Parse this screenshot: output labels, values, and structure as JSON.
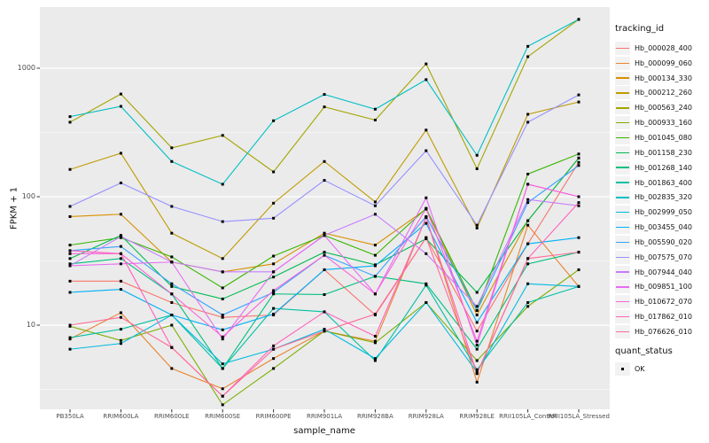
{
  "figure": {
    "background": "#FFFFFF",
    "panel_bg": "#EBEBEB",
    "grid_color": "#FFFFFF",
    "tick_color": "#333333",
    "axis_text_color": "#4D4D4D",
    "marker_color": "#000000"
  },
  "axes": {
    "x_title": "sample_name",
    "y_title": "FPKM + 1"
  },
  "legend": {
    "title": "tracking_id",
    "quant_title": "quant_status",
    "quant_items": [
      {
        "label": "OK"
      }
    ]
  },
  "chart_data": {
    "type": "line",
    "title": "",
    "xlabel": "sample_name",
    "ylabel": "FPKM + 1",
    "y_scale": "log10",
    "ylim": [
      2.2,
      3000
    ],
    "y_major_ticks": [
      10,
      100,
      1000
    ],
    "y_minor_ticks": [
      3.1623,
      31.623,
      316.23
    ],
    "grid": true,
    "legend_position": "right",
    "legend_title": "tracking_id",
    "quant_status_legend": {
      "title": "quant_status",
      "items": [
        "OK"
      ]
    },
    "categories": [
      "PB350LA",
      "RRIM600LA",
      "RRIM600LE",
      "RRIM600SE",
      "RRIM600PE",
      "RRIM901LA",
      "RRIM928BA",
      "RRIM928LA",
      "RRIM928LE",
      "RRII105LA_Control",
      "RRII105LA_Stressed"
    ],
    "series": [
      {
        "name": "Hb_000028_400",
        "color": "#F8766D",
        "values": [
          22,
          22,
          15,
          11.5,
          12,
          27,
          12,
          48,
          9,
          43,
          185
        ]
      },
      {
        "name": "Hb_000099_060",
        "color": "#EA8331",
        "values": [
          7.8,
          12.5,
          4.6,
          3.2,
          5.5,
          9,
          7.5,
          69,
          3.6,
          60,
          20
        ]
      },
      {
        "name": "Hb_000134_330",
        "color": "#D89000",
        "values": [
          70,
          73,
          31,
          26,
          30,
          52,
          42,
          80,
          12,
          65,
          200
        ]
      },
      {
        "name": "Hb_000212_260",
        "color": "#C09B00",
        "values": [
          163,
          218,
          52,
          33,
          89,
          188,
          91,
          330,
          57,
          438,
          546
        ]
      },
      {
        "name": "Hb_000563_240",
        "color": "#A3A500",
        "values": [
          380,
          630,
          240,
          300,
          156,
          500,
          395,
          1080,
          165,
          1230,
          2400
        ]
      },
      {
        "name": "Hb_000933_160",
        "color": "#7CAE00",
        "values": [
          9.8,
          7.6,
          10,
          2.4,
          4.6,
          9,
          7.3,
          15,
          5.3,
          14,
          27
        ]
      },
      {
        "name": "Hb_001045_080",
        "color": "#39B600",
        "values": [
          42,
          48,
          34,
          19.5,
          34.5,
          50,
          35,
          81,
          13,
          150,
          215
        ]
      },
      {
        "name": "Hb_001158_230",
        "color": "#00BB4E",
        "values": [
          33,
          50,
          20,
          16,
          23.7,
          37,
          29.5,
          47,
          18,
          65,
          200
        ]
      },
      {
        "name": "Hb_001268_140",
        "color": "#00BF7D",
        "values": [
          30,
          33,
          17.5,
          4.6,
          17.5,
          17.3,
          24,
          21,
          6.5,
          30,
          37
        ]
      },
      {
        "name": "Hb_001863_400",
        "color": "#00C1A3",
        "values": [
          8,
          9.3,
          12,
          4.6,
          13.5,
          12.7,
          5.3,
          20.5,
          4.5,
          15,
          20
        ]
      },
      {
        "name": "Hb_002835_320",
        "color": "#00BFC4",
        "values": [
          420,
          505,
          188,
          125,
          390,
          625,
          480,
          815,
          210,
          1480,
          2400
        ]
      },
      {
        "name": "Hb_002999_050",
        "color": "#00BAE0",
        "values": [
          6.5,
          7.2,
          12,
          5,
          6.5,
          9.3,
          5.5,
          15,
          4.3,
          21,
          20
        ]
      },
      {
        "name": "Hb_003455_040",
        "color": "#00B0F6",
        "values": [
          18,
          19,
          12,
          9.2,
          12.2,
          27,
          29,
          62,
          10.5,
          43,
          48
        ]
      },
      {
        "name": "Hb_005590_020",
        "color": "#35A2FF",
        "values": [
          38,
          41,
          21,
          12,
          18,
          35,
          24,
          70,
          13,
          90,
          175
        ]
      },
      {
        "name": "Hb_007575_070",
        "color": "#9590FF",
        "values": [
          84,
          128,
          84,
          64,
          68,
          134,
          85,
          228,
          60,
          380,
          620
        ]
      },
      {
        "name": "Hb_007944_040",
        "color": "#C77CFF",
        "values": [
          29,
          49,
          31,
          26,
          26,
          50,
          73,
          36,
          14,
          95,
          85
        ]
      },
      {
        "name": "Hb_009851_100",
        "color": "#E76BF3",
        "values": [
          29,
          30,
          31,
          7.8,
          26,
          50,
          17.5,
          98,
          7,
          125,
          100
        ]
      },
      {
        "name": "Hb_010672_070",
        "color": "#FA62DB",
        "values": [
          36,
          36,
          17.5,
          8.1,
          18.6,
          35,
          17.5,
          81,
          7.5,
          125,
          100
        ]
      },
      {
        "name": "Hb_017862_010",
        "color": "#FF62BC",
        "values": [
          38,
          36,
          6.7,
          2.8,
          6.9,
          12.7,
          8.2,
          69,
          4.2,
          33,
          90
        ]
      },
      {
        "name": "Hb_076626_010",
        "color": "#FF6A98",
        "values": [
          10,
          11.5,
          6.7,
          2.8,
          6.5,
          9,
          12.2,
          48,
          4.2,
          33,
          37
        ]
      }
    ]
  }
}
